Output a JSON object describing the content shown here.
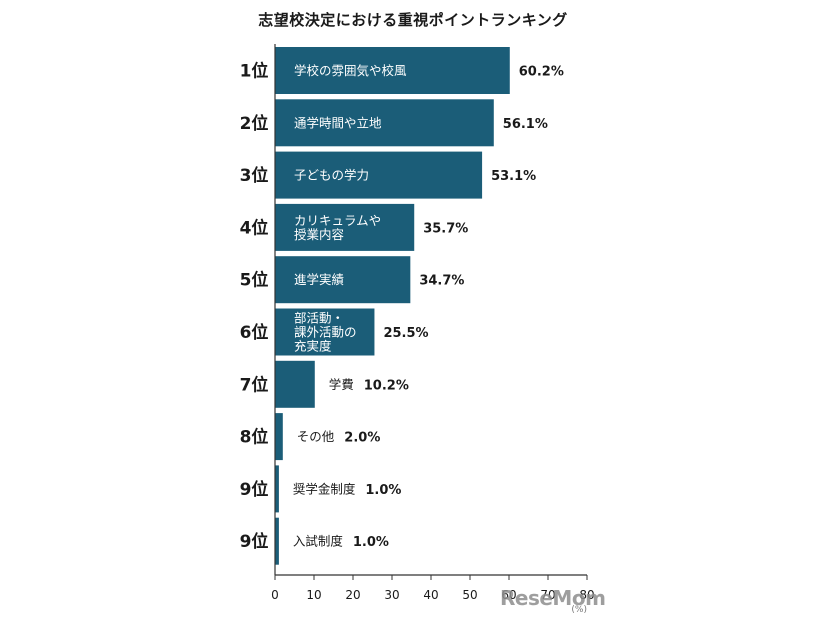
{
  "chart_data": {
    "type": "bar",
    "orientation": "horizontal",
    "title": "志望校決定における重視ポイントランキング",
    "bar_color": "#1b5d78",
    "unit": "(%)",
    "xlim": [
      0,
      80
    ],
    "xticks": [
      0,
      10,
      20,
      30,
      40,
      50,
      60,
      70,
      80
    ],
    "grid": false,
    "items": [
      {
        "rank": "1位",
        "lines": [
          "学校の雰囲気や校風"
        ],
        "value": 60.2,
        "value_label": "60.2%"
      },
      {
        "rank": "2位",
        "lines": [
          "通学時間や立地"
        ],
        "value": 56.1,
        "value_label": "56.1%"
      },
      {
        "rank": "3位",
        "lines": [
          "子どもの学力"
        ],
        "value": 53.1,
        "value_label": "53.1%"
      },
      {
        "rank": "4位",
        "lines": [
          "カリキュラムや",
          "授業内容"
        ],
        "value": 35.7,
        "value_label": "35.7%"
      },
      {
        "rank": "5位",
        "lines": [
          "進学実績"
        ],
        "value": 34.7,
        "value_label": "34.7%"
      },
      {
        "rank": "6位",
        "lines": [
          "部活動・",
          "課外活動の",
          "充実度"
        ],
        "value": 25.5,
        "value_label": "25.5%"
      },
      {
        "rank": "7位",
        "lines": [
          "学費"
        ],
        "value": 10.2,
        "value_label": "10.2%"
      },
      {
        "rank": "8位",
        "lines": [
          "その他"
        ],
        "value": 2.0,
        "value_label": "2.0%"
      },
      {
        "rank": "9位",
        "lines": [
          "奨学金制度"
        ],
        "value": 1.0,
        "value_label": "1.0%"
      },
      {
        "rank": "9位",
        "lines": [
          "入試制度"
        ],
        "value": 1.0,
        "value_label": "1.0%"
      }
    ]
  },
  "watermark": "ReseMom"
}
